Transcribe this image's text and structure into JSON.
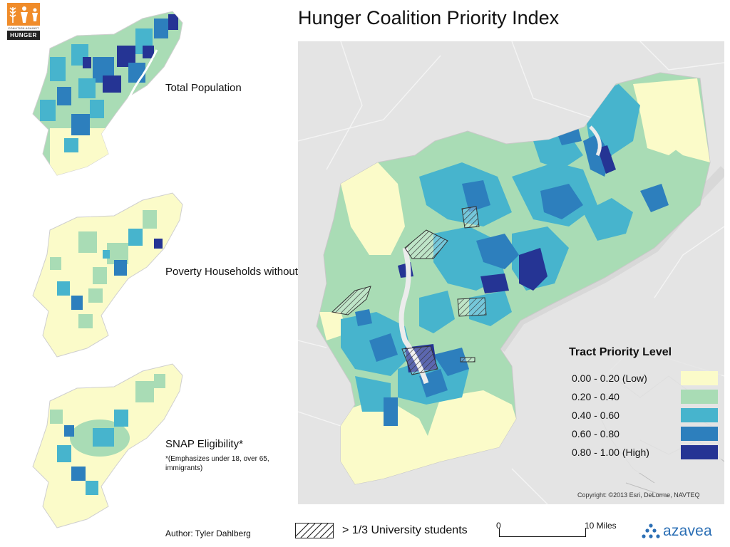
{
  "title": "Hunger Coalition Priority Index",
  "logo": {
    "small_text": "COALITION AGAINST",
    "name": "HUNGER",
    "icon": "people-grain-icon"
  },
  "mini_maps": [
    {
      "label": "Total Population"
    },
    {
      "label": "Poverty Households without SNAP"
    },
    {
      "label": "SNAP Eligibility*",
      "note": "*(Emphasizes under 18, over 65, immigrants)"
    }
  ],
  "legend": {
    "title": "Tract Priority Level",
    "classes": [
      {
        "label": "0.00 - 0.20 (Low)",
        "color": "#fbfbc9"
      },
      {
        "label": "0.20 - 0.40",
        "color": "#a9dcb5"
      },
      {
        "label": "0.40 - 0.60",
        "color": "#47b4cd"
      },
      {
        "label": "0.60 - 0.80",
        "color": "#2d7fbd"
      },
      {
        "label": "0.80 - 1.00 (High)",
        "color": "#253494"
      }
    ]
  },
  "copyright": "Copyright: ©2013 Esri, DeLorme, NAVTEQ",
  "footer": {
    "author": "Author: Tyler Dahlberg",
    "hatch_label": "> 1/3 University students",
    "scale_zero": "0",
    "scale_ten": "10 Miles",
    "brand": "azavea"
  }
}
